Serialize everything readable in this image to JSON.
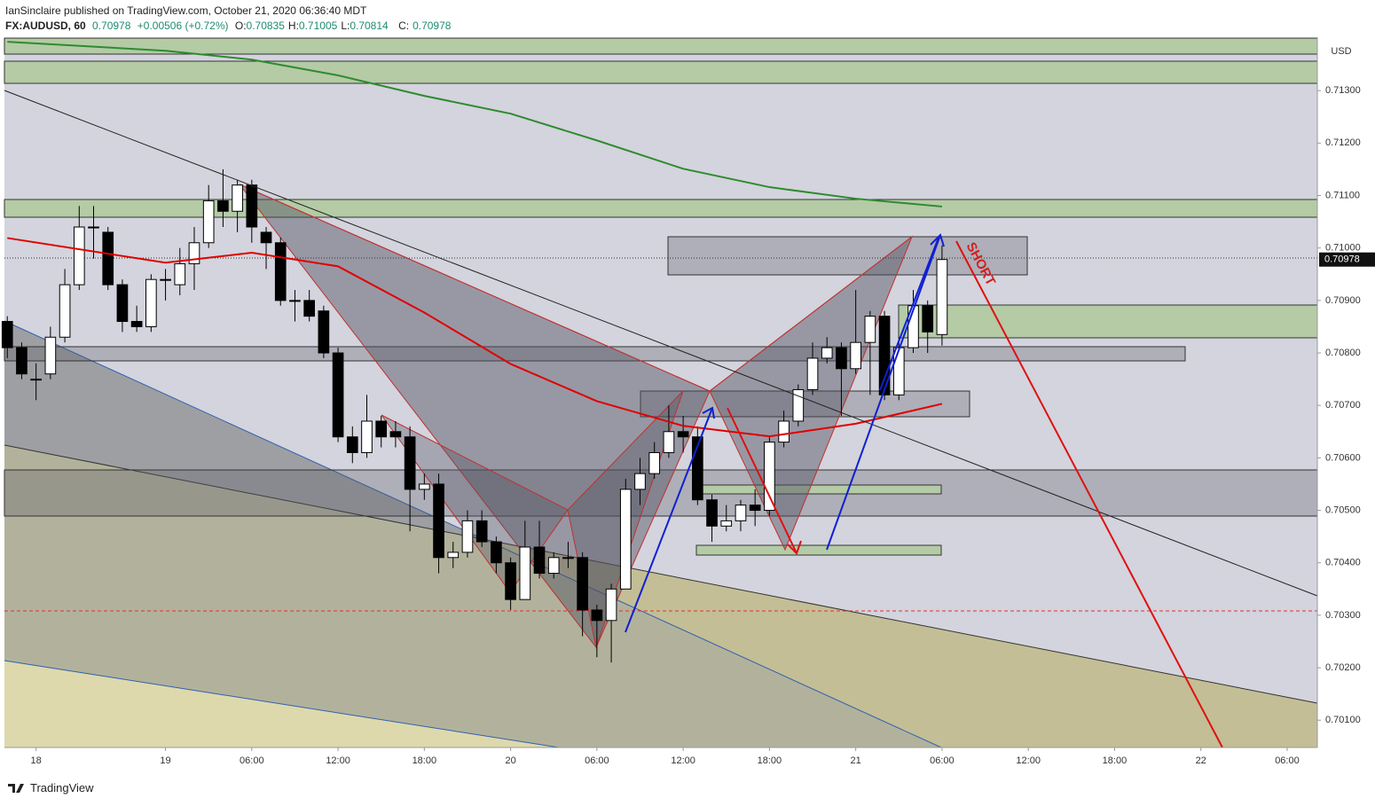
{
  "header": {
    "publisher": "IanSinclaire published on TradingView.com, October 21, 2020 06:36:40 MDT",
    "symbol": "FX:AUDUSD, 60",
    "change": "+0.00506 (+0.72%)",
    "ohlc": [
      {
        "label": "O:",
        "value": 0.70835
      },
      {
        "label": "H:",
        "value": 0.71005
      },
      {
        "label": "L:",
        "value": 0.70814
      }
    ],
    "close_label": "C:"
  },
  "footer": {
    "brand": "TradingView"
  },
  "chart_data": {
    "type": "candlestick",
    "currency": "USD",
    "last_price": 0.70978,
    "annotation": "SHORT",
    "x": [
      -11,
      -10,
      -9,
      -8,
      -7,
      -6,
      -5,
      -4,
      -3,
      -2,
      -1,
      0,
      1,
      2,
      3,
      4,
      5,
      6,
      7,
      8,
      9,
      10,
      11,
      12,
      13,
      14,
      15,
      16,
      17,
      18,
      19,
      20,
      21,
      22,
      23,
      24,
      25,
      26,
      27,
      28,
      29,
      30,
      31,
      32,
      33,
      34,
      35,
      36,
      37,
      38,
      39,
      40,
      41,
      42,
      43,
      44,
      45,
      46,
      47,
      48,
      49,
      50,
      51,
      52,
      53,
      54
    ],
    "open": [
      0.7086,
      0.7081,
      0.7075,
      0.7076,
      0.7083,
      0.7093,
      0.7104,
      0.7103,
      0.7093,
      0.7086,
      0.7085,
      0.7094,
      0.7093,
      0.7097,
      0.7101,
      0.7109,
      0.7107,
      0.7112,
      0.7103,
      0.7101,
      0.709,
      0.709,
      0.7088,
      0.708,
      0.7064,
      0.7061,
      0.7067,
      0.7065,
      0.7064,
      0.7054,
      0.7055,
      0.7041,
      0.7042,
      0.7048,
      0.7044,
      0.704,
      0.7033,
      0.7043,
      0.7038,
      0.7041,
      0.7041,
      0.7031,
      0.7029,
      0.7035,
      0.7054,
      0.7057,
      0.7061,
      0.7065,
      0.7064,
      0.7052,
      0.7047,
      0.7048,
      0.7051,
      0.705,
      0.7063,
      0.7067,
      0.7073,
      0.7079,
      0.7081,
      0.7077,
      0.7082,
      0.7087,
      0.7072,
      0.7081,
      0.7089,
      0.70835
    ],
    "high": [
      0.7087,
      0.7082,
      0.7078,
      0.7085,
      0.7096,
      0.7108,
      0.7108,
      0.7104,
      0.7094,
      0.7089,
      0.7095,
      0.7096,
      0.71,
      0.7104,
      0.7112,
      0.7115,
      0.7113,
      0.7113,
      0.7104,
      0.7102,
      0.7092,
      0.7092,
      0.7089,
      0.7081,
      0.7066,
      0.7072,
      0.7068,
      0.7067,
      0.7066,
      0.7057,
      0.7057,
      0.7044,
      0.705,
      0.705,
      0.7045,
      0.7041,
      0.7048,
      0.7048,
      0.7042,
      0.7044,
      0.7042,
      0.7032,
      0.7036,
      0.7056,
      0.706,
      0.7063,
      0.707,
      0.7068,
      0.7066,
      0.7053,
      0.7051,
      0.7052,
      0.7054,
      0.7064,
      0.7069,
      0.7074,
      0.7082,
      0.7083,
      0.7082,
      0.7092,
      0.7088,
      0.7088,
      0.7083,
      0.7092,
      0.709,
      0.71005
    ],
    "low": [
      0.7079,
      0.7075,
      0.7071,
      0.7075,
      0.7082,
      0.7092,
      0.7098,
      0.7092,
      0.7084,
      0.7084,
      0.7084,
      0.709,
      0.7091,
      0.7092,
      0.71,
      0.7104,
      0.7103,
      0.7101,
      0.7096,
      0.7089,
      0.7086,
      0.7086,
      0.7079,
      0.7063,
      0.7059,
      0.706,
      0.7062,
      0.7062,
      0.7046,
      0.7052,
      0.7038,
      0.7039,
      0.7041,
      0.7043,
      0.7038,
      0.7031,
      0.7033,
      0.7037,
      0.7037,
      0.7039,
      0.7026,
      0.7022,
      0.7021,
      0.7035,
      0.7051,
      0.7056,
      0.706,
      0.7061,
      0.7051,
      0.7044,
      0.7046,
      0.7046,
      0.7047,
      0.7049,
      0.7062,
      0.7066,
      0.7072,
      0.7078,
      0.7068,
      0.7076,
      0.7072,
      0.7071,
      0.7071,
      0.708,
      0.708,
      0.70814
    ],
    "close": [
      0.7081,
      0.7076,
      0.7075,
      0.7083,
      0.7093,
      0.7104,
      0.7104,
      0.7093,
      0.7086,
      0.7085,
      0.7094,
      0.7094,
      0.7097,
      0.7101,
      0.7109,
      0.7107,
      0.7112,
      0.7104,
      0.7101,
      0.709,
      0.709,
      0.7087,
      0.708,
      0.7064,
      0.7061,
      0.7067,
      0.7064,
      0.7064,
      0.7054,
      0.7055,
      0.7041,
      0.7042,
      0.7048,
      0.7044,
      0.704,
      0.7033,
      0.7043,
      0.7038,
      0.7041,
      0.7041,
      0.7031,
      0.7029,
      0.7035,
      0.7054,
      0.7057,
      0.7061,
      0.7065,
      0.7064,
      0.7052,
      0.7047,
      0.7048,
      0.7051,
      0.705,
      0.7063,
      0.7067,
      0.7073,
      0.7079,
      0.7081,
      0.7077,
      0.7082,
      0.7087,
      0.7072,
      0.7081,
      0.7089,
      0.7084,
      0.70978
    ],
    "up_color": "#ffffff",
    "down_color": "#000000",
    "overlays": [
      {
        "color": "#2e8b2e",
        "x": [
          -11,
          0,
          6,
          12,
          18,
          24,
          30,
          36,
          42,
          48,
          54
        ],
        "values": [
          0.71393,
          0.71376,
          0.71359,
          0.71329,
          0.7129,
          0.71256,
          0.71205,
          0.71151,
          0.71116,
          0.71094,
          0.71079
        ]
      },
      {
        "color": "#e00000",
        "x": [
          -11,
          0,
          6,
          12,
          18,
          24,
          30,
          36,
          42,
          48,
          54
        ],
        "values": [
          0.71019,
          0.70972,
          0.70991,
          0.70965,
          0.70877,
          0.70779,
          0.70708,
          0.70661,
          0.70641,
          0.70665,
          0.70703
        ]
      }
    ],
    "xlim": [
      -11.2,
      80.1
    ],
    "xticks": [
      {
        "value": -9,
        "label": "18"
      },
      {
        "value": 0,
        "label": "19"
      },
      {
        "value": 6,
        "label": "06:00"
      },
      {
        "value": 12,
        "label": "12:00"
      },
      {
        "value": 18,
        "label": "18:00"
      },
      {
        "value": 24,
        "label": "20"
      },
      {
        "value": 30,
        "label": "06:00"
      },
      {
        "value": 36,
        "label": "12:00"
      },
      {
        "value": 42,
        "label": "18:00"
      },
      {
        "value": 48,
        "label": "21"
      },
      {
        "value": 54,
        "label": "06:00"
      },
      {
        "value": 60,
        "label": "12:00"
      },
      {
        "value": 66,
        "label": "18:00"
      },
      {
        "value": 72,
        "label": "22"
      },
      {
        "value": 78,
        "label": "06:00"
      }
    ],
    "ylim": [
      0.70048,
      0.714
    ],
    "yticks": [
      {
        "value": 0.701,
        "label": "0.70100"
      },
      {
        "value": 0.702,
        "label": "0.70200"
      },
      {
        "value": 0.703,
        "label": "0.70300"
      },
      {
        "value": 0.704,
        "label": "0.70400"
      },
      {
        "value": 0.705,
        "label": "0.70500"
      },
      {
        "value": 0.706,
        "label": "0.70600"
      },
      {
        "value": 0.707,
        "label": "0.70700"
      },
      {
        "value": 0.708,
        "label": "0.70800"
      },
      {
        "value": 0.709,
        "label": "0.70900"
      },
      {
        "value": 0.71,
        "label": "0.71000"
      },
      {
        "value": 0.711,
        "label": "0.71100"
      },
      {
        "value": 0.712,
        "label": "0.71200"
      },
      {
        "value": 0.713,
        "label": "0.71300"
      }
    ]
  }
}
